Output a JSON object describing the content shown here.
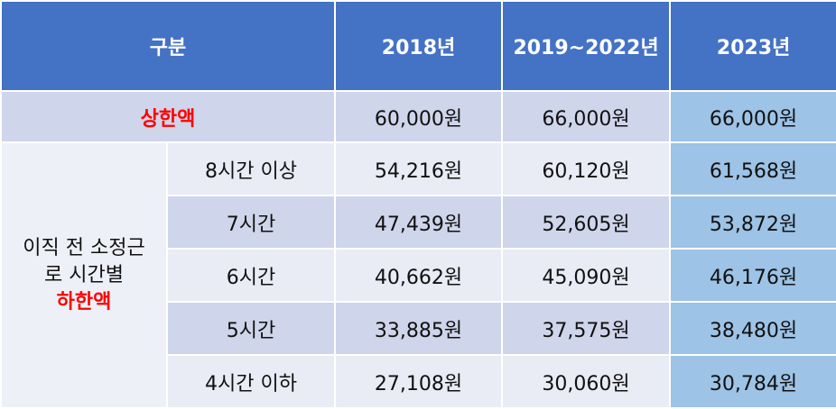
{
  "header": {
    "category": "구분",
    "years": [
      "2018년",
      "2019~2022년",
      "2023년"
    ]
  },
  "upper_limit": {
    "label": "상한액",
    "values": [
      "60,000원",
      "66,000원",
      "66,000원"
    ]
  },
  "lower_limit": {
    "label_line1": "이직 전 소정근",
    "label_line2": "로 시간별",
    "label_line3": "하한액",
    "rows": [
      {
        "hours": "8시간 이상",
        "values": [
          "54,216원",
          "60,120원",
          "61,568원"
        ]
      },
      {
        "hours": "7시간",
        "values": [
          "47,439원",
          "52,605원",
          "53,872원"
        ]
      },
      {
        "hours": "6시간",
        "values": [
          "40,662원",
          "45,090원",
          "46,176원"
        ]
      },
      {
        "hours": "5시간",
        "values": [
          "33,885원",
          "37,575원",
          "38,480원"
        ]
      },
      {
        "hours": "4시간 이하",
        "values": [
          "27,108원",
          "30,060원",
          "30,784원"
        ]
      }
    ]
  },
  "colors": {
    "header_bg": "#4472c4",
    "row_dark": "#cfd5ea",
    "row_light": "#e9ebf5",
    "year_2023_col": "#9dc3e6",
    "highlight_text": "#ff0000"
  }
}
